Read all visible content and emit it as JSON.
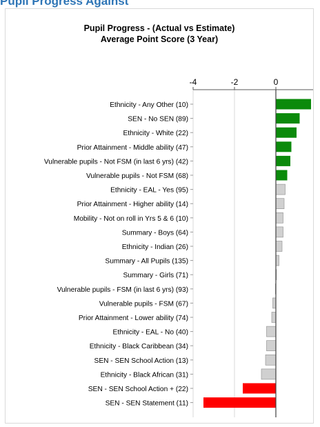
{
  "header": {
    "text": "Pupil Progress Against"
  },
  "chart_data": {
    "type": "bar",
    "orientation": "horizontal",
    "title": "Pupil Progress - (Actual vs Estimate)",
    "subtitle": "Average Point Score (3 Year)",
    "xlim": [
      -4,
      2
    ],
    "xticks": [
      -4,
      -2,
      0,
      2
    ],
    "grid": true,
    "x_axis_position": "top",
    "colors": {
      "positive": "#0b8a0b",
      "neutral": "#d0d0d0",
      "negative": "#ff0000"
    },
    "categories": [
      "Ethnicity - Any Other (10)",
      "SEN - No SEN (89)",
      "Ethnicity - White (22)",
      "Prior Attainment - Middle ability (47)",
      "Vulnerable pupils - Not FSM (in last 6 yrs) (42)",
      "Vulnerable pupils - Not FSM (68)",
      "Ethnicity - EAL - Yes (95)",
      "Prior Attainment - Higher ability (14)",
      "Mobility - Not on roll in Yrs 5 & 6 (10)",
      "Summary - Boys (64)",
      "Ethnicity - Indian (26)",
      "Summary - All Pupils (135)",
      "Summary - Girls (71)",
      "Vulnerable pupils - FSM (in last 6 yrs) (93)",
      "Vulnerable pupils - FSM (67)",
      "Prior Attainment - Lower ability (74)",
      "Ethnicity - EAL - No (40)",
      "Ethnicity - Black Caribbean (34)",
      "SEN - SEN School Action (13)",
      "Ethnicity - Black African (31)",
      "SEN - SEN School Action + (22)",
      "SEN - SEN Statement (11)"
    ],
    "values": [
      1.7,
      1.15,
      1.0,
      0.75,
      0.7,
      0.55,
      0.45,
      0.4,
      0.35,
      0.35,
      0.3,
      0.15,
      0.02,
      -0.02,
      -0.15,
      -0.2,
      -0.45,
      -0.45,
      -0.5,
      -0.7,
      -1.6,
      -3.5
    ],
    "bar_colors": [
      "positive",
      "positive",
      "positive",
      "positive",
      "positive",
      "positive",
      "neutral",
      "neutral",
      "neutral",
      "neutral",
      "neutral",
      "neutral",
      "neutral",
      "neutral",
      "neutral",
      "neutral",
      "neutral",
      "neutral",
      "neutral",
      "neutral",
      "negative",
      "negative"
    ]
  }
}
